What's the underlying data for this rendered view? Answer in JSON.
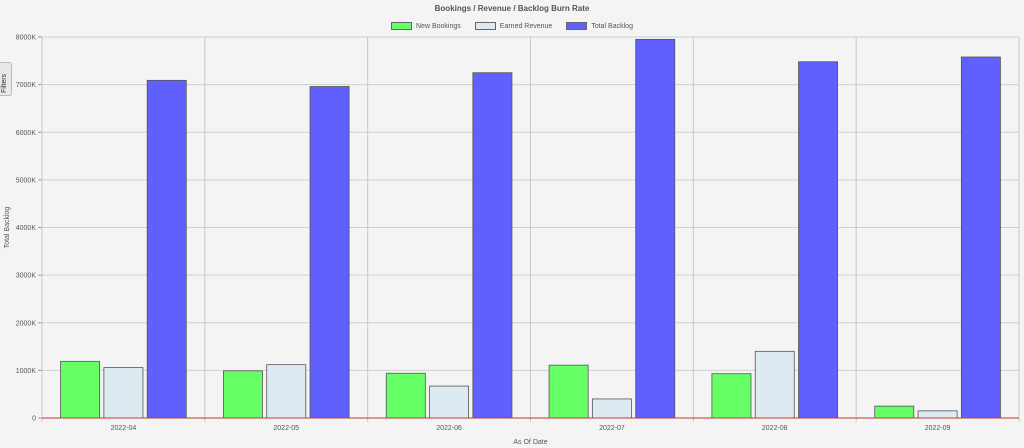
{
  "filters_tab_label": "Filters",
  "chart_data": {
    "type": "bar",
    "title": "Bookings / Revenue / Backlog Burn Rate",
    "xlabel": "As Of Date",
    "ylabel": "Total Backlog",
    "categories": [
      "2022-04",
      "2022-05",
      "2022-06",
      "2022-07",
      "2022-08",
      "2022-09"
    ],
    "ylim": [
      0,
      8000000
    ],
    "yticks": [
      0,
      1000000,
      2000000,
      3000000,
      4000000,
      5000000,
      6000000,
      7000000,
      8000000
    ],
    "ytick_labels": [
      "0",
      "1000K",
      "2000K",
      "3000K",
      "4000K",
      "5000K",
      "6000K",
      "7000K",
      "8000K"
    ],
    "grid": true,
    "legend_position": "top-center",
    "series": [
      {
        "name": "New Bookings",
        "color": "#66ff66",
        "values": [
          1190000,
          990000,
          940000,
          1110000,
          930000,
          250000
        ]
      },
      {
        "name": "Earned Revenue",
        "color": "#deeaf1",
        "values": [
          1060000,
          1120000,
          670000,
          400000,
          1400000,
          150000
        ]
      },
      {
        "name": "Total Backlog",
        "color": "#6060ff",
        "values": [
          7090000,
          6960000,
          7250000,
          7950000,
          7480000,
          7580000
        ]
      }
    ]
  }
}
